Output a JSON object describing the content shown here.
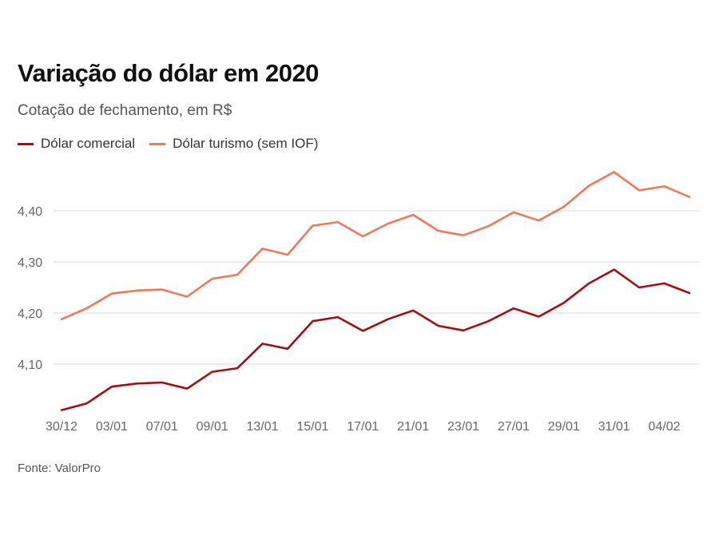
{
  "title": "Variação do dólar em 2020",
  "subtitle": "Cotação de fechamento, em R$",
  "source": "Fonte: ValorPro",
  "chart_data": {
    "type": "line",
    "x": [
      "30/12",
      "02/01",
      "03/01",
      "06/01",
      "07/01",
      "08/01",
      "09/01",
      "10/01",
      "13/01",
      "14/01",
      "15/01",
      "16/01",
      "17/01",
      "20/01",
      "21/01",
      "22/01",
      "23/01",
      "24/01",
      "27/01",
      "28/01",
      "29/01",
      "30/01",
      "31/01",
      "03/02",
      "04/02",
      "05/02"
    ],
    "x_tick_labels": [
      "30/12",
      "03/01",
      "07/01",
      "09/01",
      "13/01",
      "15/01",
      "17/01",
      "21/01",
      "23/01",
      "27/01",
      "29/01",
      "31/01",
      "04/02"
    ],
    "x_tick_indices": [
      0,
      2,
      4,
      6,
      8,
      10,
      12,
      14,
      16,
      18,
      20,
      22,
      24
    ],
    "series": [
      {
        "name": "Dólar comercial",
        "color": "#a10f12",
        "values": [
          4.01,
          4.023,
          4.056,
          4.062,
          4.064,
          4.052,
          4.085,
          4.092,
          4.14,
          4.13,
          4.184,
          4.192,
          4.165,
          4.188,
          4.205,
          4.175,
          4.166,
          4.184,
          4.209,
          4.193,
          4.22,
          4.258,
          4.285,
          4.25,
          4.258,
          4.239
        ]
      },
      {
        "name": "Dólar turismo (sem IOF)",
        "color": "#ec7a5a",
        "values": [
          4.188,
          4.209,
          4.238,
          4.244,
          4.246,
          4.232,
          4.267,
          4.275,
          4.326,
          4.314,
          4.371,
          4.378,
          4.35,
          4.375,
          4.392,
          4.361,
          4.352,
          4.37,
          4.397,
          4.381,
          4.408,
          4.449,
          4.476,
          4.44,
          4.448,
          4.427
        ]
      }
    ],
    "y_ticks": [
      4.1,
      4.2,
      4.3,
      4.4
    ],
    "y_tick_labels": [
      "4,10",
      "4,20",
      "4,30",
      "4,40"
    ],
    "ylim": [
      4.0,
      4.49
    ],
    "grid": true,
    "legend_position": "top-left"
  }
}
